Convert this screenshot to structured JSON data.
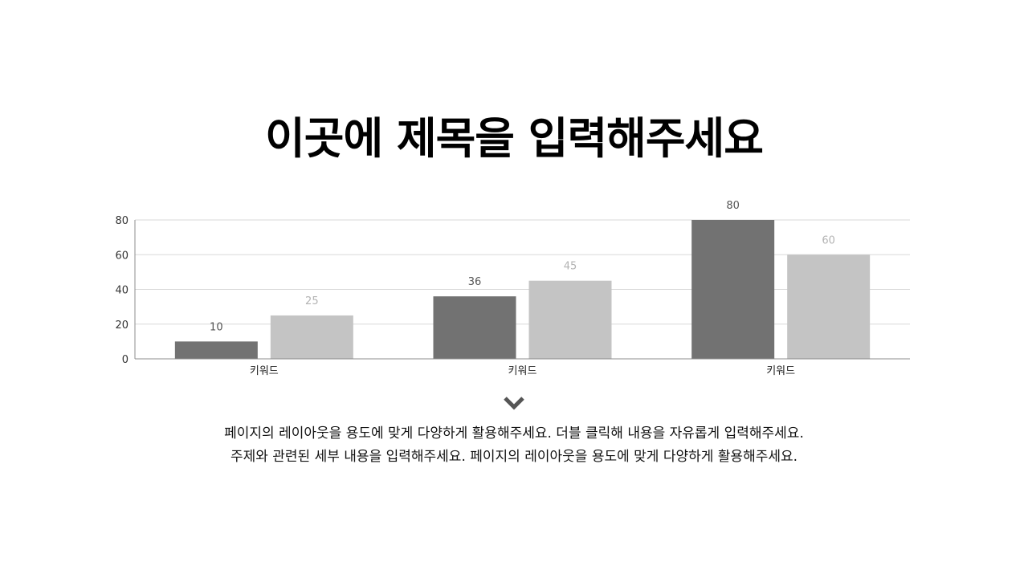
{
  "title": "이곳에 제목을 입력해주세요",
  "colors": {
    "series_dark": "#727272",
    "series_light": "#c4c4c4",
    "grid": "#d9d9d9",
    "axis": "#8c8c8c",
    "label_dark": "#555555",
    "label_light": "#b3b3b3",
    "arrow": "#555555"
  },
  "chart_data": {
    "type": "bar",
    "categories": [
      "키워드",
      "키워드",
      "키워드"
    ],
    "series": [
      {
        "values": [
          10,
          36,
          80
        ],
        "color": "#727272"
      },
      {
        "values": [
          25,
          45,
          60
        ],
        "color": "#c4c4c4"
      }
    ],
    "ylim": [
      0,
      80
    ],
    "yticks": [
      0,
      20,
      40,
      60,
      80
    ],
    "grid": true,
    "data_labels": true,
    "legend": "none"
  },
  "arrow_icon": "chevron-down-icon",
  "body_lines": [
    "페이지의 레이아웃을 용도에 맞게 다양하게 활용해주세요. 더블 클릭해 내용을 자유롭게 입력해주세요.",
    "주제와 관련된 세부 내용을 입력해주세요. 페이지의 레이아웃을 용도에 맞게 다양하게 활용해주세요."
  ]
}
